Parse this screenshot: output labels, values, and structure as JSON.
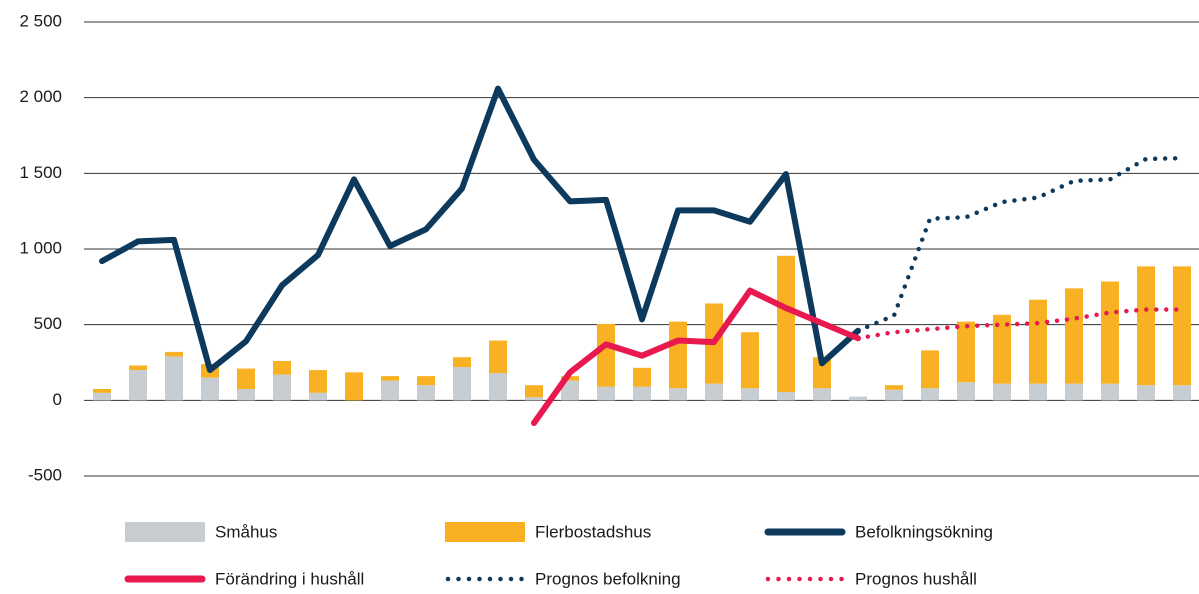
{
  "chart_data": {
    "type": "combo",
    "categories": [
      null,
      null,
      null,
      null,
      null,
      null,
      null,
      null,
      null,
      null,
      null,
      null,
      null,
      null,
      null,
      null,
      null,
      null,
      null,
      null,
      null,
      null,
      null,
      null,
      null,
      null,
      null,
      null,
      null,
      null,
      null
    ],
    "ylim": [
      -500,
      2500
    ],
    "yticks": [
      -500,
      0,
      500,
      {
        "value": 1000,
        "label": "1 000"
      },
      {
        "value": 1500,
        "label": "1 500"
      },
      {
        "value": 2000,
        "label": "2 000"
      },
      {
        "value": 2500,
        "label": "2 500"
      }
    ],
    "grid": true,
    "series": [
      {
        "name": "Småhus",
        "type": "bar",
        "color": "#c8cdd2",
        "values": [
          50,
          200,
          290,
          150,
          75,
          170,
          50,
          0,
          130,
          100,
          220,
          180,
          20,
          130,
          90,
          90,
          80,
          110,
          80,
          55,
          80,
          25,
          70,
          80,
          120,
          110,
          110,
          110,
          110,
          100,
          100
        ]
      },
      {
        "name": "Flerbostadshus",
        "type": "bar",
        "color": "#f7b122",
        "values": [
          25,
          30,
          30,
          90,
          135,
          90,
          150,
          185,
          30,
          60,
          65,
          215,
          80,
          30,
          415,
          125,
          440,
          530,
          370,
          900,
          205,
          0,
          30,
          250,
          400,
          455,
          555,
          630,
          675,
          785,
          785
        ]
      },
      {
        "name": "Befolkningsökning",
        "type": "line",
        "style": "solid",
        "color": "#0d3a5c",
        "values": [
          920,
          1050,
          1060,
          200,
          390,
          760,
          960,
          1460,
          1020,
          1130,
          1400,
          2060,
          1590,
          1315,
          1325,
          535,
          1255,
          1255,
          1180,
          1495,
          245,
          460,
          null,
          null,
          null,
          null,
          null,
          null,
          null,
          null,
          null
        ]
      },
      {
        "name": "Förändring i hushåll",
        "type": "line",
        "style": "solid",
        "color": "#e8194f",
        "values": [
          null,
          null,
          null,
          null,
          null,
          null,
          null,
          null,
          null,
          null,
          null,
          null,
          -150,
          185,
          370,
          295,
          395,
          385,
          725,
          610,
          510,
          410,
          null,
          null,
          null,
          null,
          null,
          null,
          null,
          null,
          null
        ]
      },
      {
        "name": "Prognos befolkning",
        "type": "line",
        "style": "dotted",
        "color": "#0d3a5c",
        "values": [
          null,
          null,
          null,
          null,
          null,
          null,
          null,
          null,
          null,
          null,
          null,
          null,
          null,
          null,
          null,
          null,
          null,
          null,
          null,
          null,
          null,
          460,
          560,
          1200,
          1210,
          1310,
          1340,
          1450,
          1460,
          1595,
          1600
        ]
      },
      {
        "name": "Prognos hushåll",
        "type": "line",
        "style": "dotted",
        "color": "#e8194f",
        "values": [
          null,
          null,
          null,
          null,
          null,
          null,
          null,
          null,
          null,
          null,
          null,
          null,
          null,
          null,
          null,
          null,
          null,
          null,
          null,
          null,
          null,
          410,
          450,
          470,
          490,
          500,
          510,
          540,
          580,
          600,
          600
        ]
      }
    ]
  }
}
